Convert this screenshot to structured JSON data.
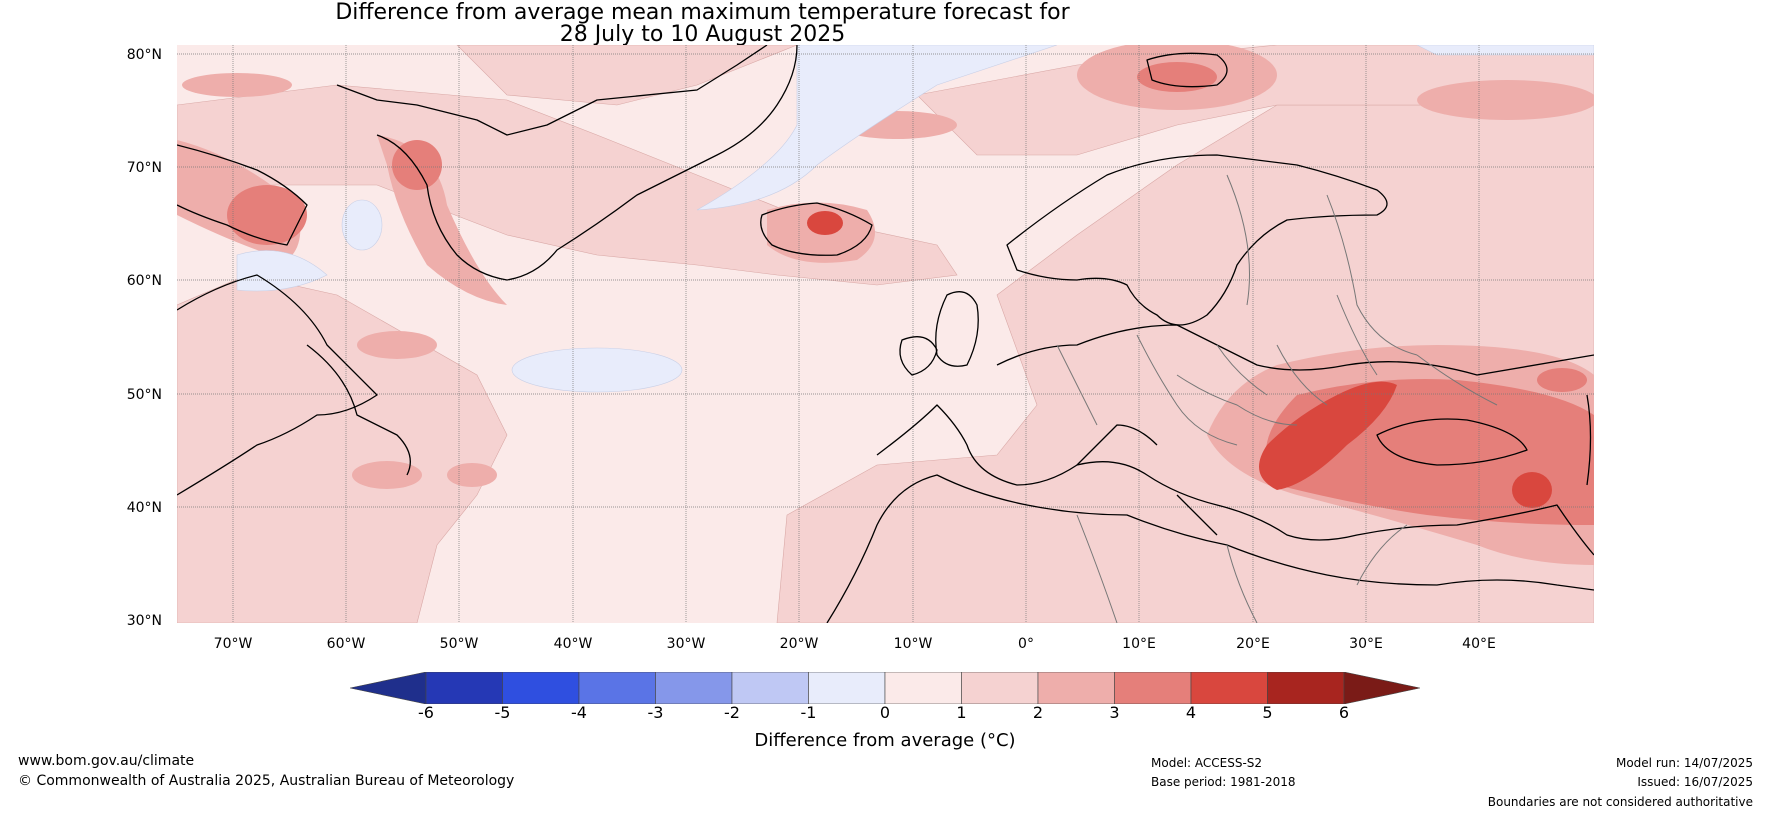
{
  "title": {
    "line1": "Difference from average mean maximum temperature forecast for",
    "line2": "28 July to 10 August 2025"
  },
  "map": {
    "lat_labels": [
      "80°N",
      "70°N",
      "60°N",
      "50°N",
      "40°N",
      "30°N"
    ],
    "lon_labels": [
      "70°W",
      "60°W",
      "50°W",
      "40°W",
      "30°W",
      "20°W",
      "10°W",
      "0°",
      "10°E",
      "20°E",
      "30°E",
      "40°E"
    ],
    "extent": {
      "lon_min": -75,
      "lon_max": 50,
      "lat_min": 30,
      "lat_max": 81
    }
  },
  "colorbar": {
    "ticks": [
      "-6",
      "-5",
      "-4",
      "-3",
      "-2",
      "-1",
      "0",
      "1",
      "2",
      "3",
      "4",
      "5",
      "6"
    ],
    "colors": [
      "#1f2f8c",
      "#2538b5",
      "#2f4fe0",
      "#5a74e6",
      "#8597ea",
      "#bfc8f4",
      "#e8ecfb",
      "#fbeae9",
      "#f5d2d1",
      "#eeaeab",
      "#e57f7a",
      "#d9473e",
      "#a8251f",
      "#7a1b17"
    ],
    "label": "Difference from average (°C)"
  },
  "footer": {
    "url": "www.bom.gov.au/climate",
    "copyright": "© Commonwealth of Australia 2025, Australian Bureau of Meteorology",
    "model": "Model: ACCESS-S2",
    "base_period": "Base period: 1981-2018",
    "model_run": "Model run: 14/07/2025",
    "issued": "Issued: 16/07/2025",
    "disclaimer": "Boundaries are not considered authoritative"
  }
}
